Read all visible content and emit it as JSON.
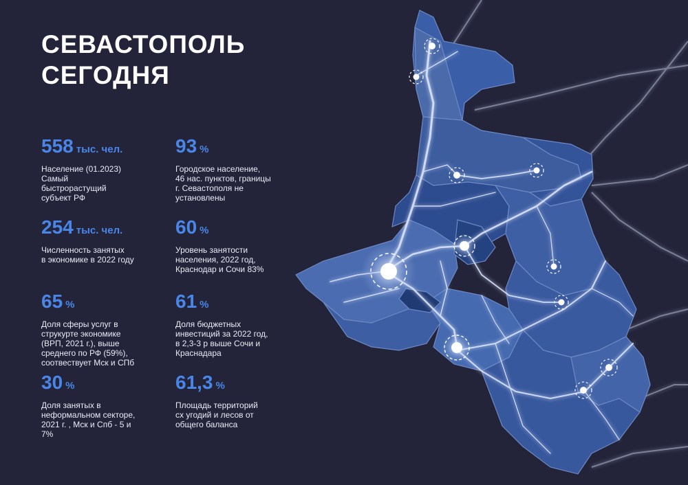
{
  "title": {
    "line1": "СЕВАСТОПОЛЬ",
    "line2": "СЕГОДНЯ"
  },
  "stats": [
    {
      "value": "558",
      "unit": "тыс. чел.",
      "desc": "Население (01.2023)\nСамый\nбыстрорастущий\nсубъект РФ"
    },
    {
      "value": "93",
      "unit": "%",
      "desc": "Городское население,\n46 нас. пунктов, границы\nг. Севастополя не\nустановлены"
    },
    {
      "value": "254",
      "unit": "тыс. чел.",
      "desc": "Численность занятых\nв экономике в 2022 году"
    },
    {
      "value": "60",
      "unit": "%",
      "desc": "Уровень занятости\nнаселения, 2022 год,\nКраснодар и Сочи 83%"
    },
    {
      "value": "65",
      "unit": "%",
      "desc": "Доля сферы услуг в\nструкурте экономике\n(ВРП, 2021 г.), выше\nсреднего по РФ (59%),\nсоотвествует Мск и СПб"
    },
    {
      "value": "61",
      "unit": "%",
      "desc": "Доля бюджетных\nинвестиций за 2022 год,\nв 2,3-3 р выше Сочи и\nКраснадара"
    },
    {
      "value": "30",
      "unit": "%",
      "desc": "Доля занятых в\nнеформальном секторе,\n2021 г. , Мск и Спб - 5 и\n7%"
    },
    {
      "value": "61,3",
      "unit": "%",
      "desc": "Площадь территорий\nсх угодий и лесов от\nобщего баланса"
    }
  ],
  "colors": {
    "background": "#23243a",
    "accent": "#4a86e8",
    "text": "#ffffff",
    "map_fill": "#3d5d9f",
    "map_fill_dark": "#2a4a8c",
    "map_fill_light": "#5a7bb8"
  }
}
